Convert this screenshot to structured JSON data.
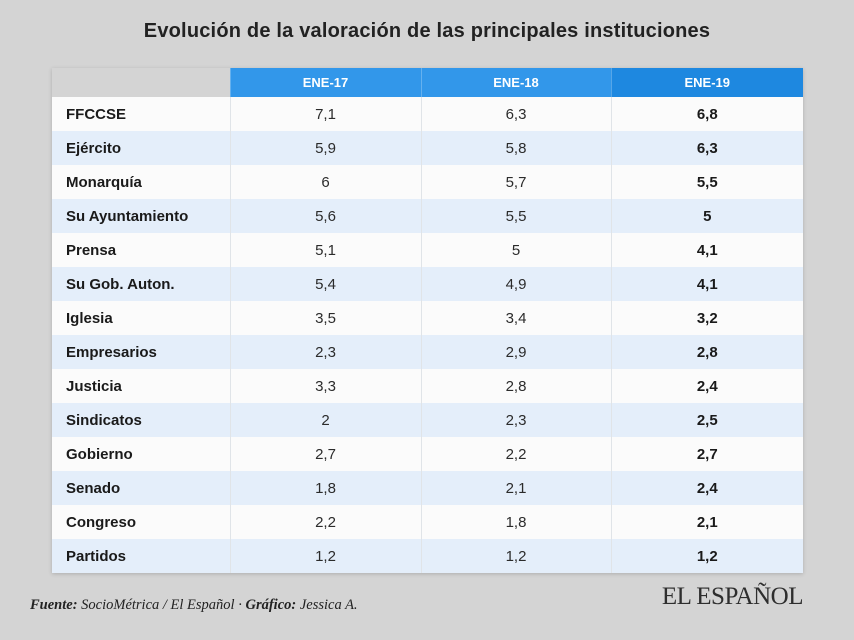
{
  "title": "Evolución de la valoración de las principales instituciones",
  "table": {
    "columns": [
      "ENE-17",
      "ENE-18",
      "ENE-19"
    ],
    "rows": [
      {
        "label": "FFCCSE",
        "values": [
          "7,1",
          "6,3",
          "6,8"
        ]
      },
      {
        "label": "Ejército",
        "values": [
          "5,9",
          "5,8",
          "6,3"
        ]
      },
      {
        "label": "Monarquía",
        "values": [
          "6",
          "5,7",
          "5,5"
        ]
      },
      {
        "label": "Su Ayuntamiento",
        "values": [
          "5,6",
          "5,5",
          "5"
        ]
      },
      {
        "label": "Prensa",
        "values": [
          "5,1",
          "5",
          "4,1"
        ]
      },
      {
        "label": "Su Gob. Auton.",
        "values": [
          "5,4",
          "4,9",
          "4,1"
        ]
      },
      {
        "label": "Iglesia",
        "values": [
          "3,5",
          "3,4",
          "3,2"
        ]
      },
      {
        "label": "Empresarios",
        "values": [
          "2,3",
          "2,9",
          "2,8"
        ]
      },
      {
        "label": "Justicia",
        "values": [
          "3,3",
          "2,8",
          "2,4"
        ]
      },
      {
        "label": "Sindicatos",
        "values": [
          "2",
          "2,3",
          "2,5"
        ]
      },
      {
        "label": "Gobierno",
        "values": [
          "2,7",
          "2,2",
          "2,7"
        ]
      },
      {
        "label": "Senado",
        "values": [
          "1,8",
          "2,1",
          "2,4"
        ]
      },
      {
        "label": "Congreso",
        "values": [
          "2,2",
          "1,8",
          "2,1"
        ]
      },
      {
        "label": "Partidos",
        "values": [
          "1,2",
          "1,2",
          "1,2"
        ]
      }
    ]
  },
  "footer": {
    "source_label": "Fuente:",
    "source_value": " SocioMétrica / El Español · ",
    "credit_label": "Gráfico:",
    "credit_value": " Jessica A.",
    "logo": "EL ESPAÑOL"
  },
  "colors": {
    "background": "#D4D4D4",
    "header_blue": "#3297EA",
    "header_blue_dark": "#1E88E0",
    "row_white": "#FBFBFB",
    "row_blue": "#E4EEFA",
    "title_text": "#222222",
    "header_text": "#FFFFFF"
  },
  "chart_data": {
    "type": "table",
    "title": "Evolución de la valoración de las principales instituciones",
    "categories": [
      "ENE-17",
      "ENE-18",
      "ENE-19"
    ],
    "series": [
      {
        "name": "FFCCSE",
        "values": [
          7.1,
          6.3,
          6.8
        ]
      },
      {
        "name": "Ejército",
        "values": [
          5.9,
          5.8,
          6.3
        ]
      },
      {
        "name": "Monarquía",
        "values": [
          6.0,
          5.7,
          5.5
        ]
      },
      {
        "name": "Su Ayuntamiento",
        "values": [
          5.6,
          5.5,
          5.0
        ]
      },
      {
        "name": "Prensa",
        "values": [
          5.1,
          5.0,
          4.1
        ]
      },
      {
        "name": "Su Gob. Auton.",
        "values": [
          5.4,
          4.9,
          4.1
        ]
      },
      {
        "name": "Iglesia",
        "values": [
          3.5,
          3.4,
          3.2
        ]
      },
      {
        "name": "Empresarios",
        "values": [
          2.3,
          2.9,
          2.8
        ]
      },
      {
        "name": "Justicia",
        "values": [
          3.3,
          2.8,
          2.4
        ]
      },
      {
        "name": "Sindicatos",
        "values": [
          2.0,
          2.3,
          2.5
        ]
      },
      {
        "name": "Gobierno",
        "values": [
          2.7,
          2.2,
          2.7
        ]
      },
      {
        "name": "Senado",
        "values": [
          1.8,
          2.1,
          2.4
        ]
      },
      {
        "name": "Congreso",
        "values": [
          2.2,
          1.8,
          2.1
        ]
      },
      {
        "name": "Partidos",
        "values": [
          1.2,
          1.2,
          1.2
        ]
      }
    ],
    "value_range": [
      0,
      10
    ],
    "notes": "ENE-19 column rendered bold; decimal comma formatting as displayed"
  }
}
